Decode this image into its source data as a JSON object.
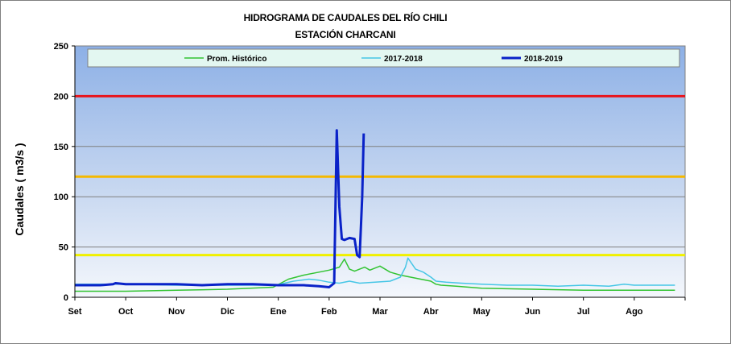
{
  "chart_data": {
    "type": "line",
    "title": "HIDROGRAMA DE CAUDALES DEL RÍO CHILI",
    "subtitle": "ESTACIÓN CHARCANI",
    "ylabel": "Caudales ( m3/s )",
    "xlabel": "",
    "ylim": [
      0,
      250
    ],
    "yticks": [
      0,
      50,
      100,
      150,
      200,
      250
    ],
    "categories": [
      "Set",
      "Oct",
      "Nov",
      "Dic",
      "Ene",
      "Feb",
      "Mar",
      "Abr",
      "May",
      "Jun",
      "Jul",
      "Ago"
    ],
    "legend_position": "top",
    "grid": true,
    "thresholds": [
      {
        "value": 200,
        "color": "#e8141c"
      },
      {
        "value": 120,
        "color": "#f5b800"
      },
      {
        "value": 42,
        "color": "#f0f000"
      }
    ],
    "series": [
      {
        "name": "Prom. Histórico",
        "color": "#33c433",
        "x": [
          0,
          1,
          2,
          3,
          3.9,
          4.2,
          4.5,
          4.8,
          5.0,
          5.2,
          5.3,
          5.4,
          5.5,
          5.6,
          5.7,
          5.8,
          6.0,
          6.2,
          6.4,
          6.6,
          6.8,
          7.0,
          7.1,
          7.2,
          7.5,
          8.0,
          9.0,
          10.0,
          11.0,
          11.8
        ],
        "values": [
          6,
          6,
          7,
          8,
          10,
          18,
          22,
          25,
          27,
          30,
          38,
          28,
          26,
          28,
          30,
          27,
          31,
          25,
          22,
          20,
          18,
          16,
          13,
          12,
          11,
          9,
          8,
          7,
          7,
          7
        ]
      },
      {
        "name": "2017-2018",
        "color": "#46c6e6",
        "x": [
          0,
          1,
          2,
          3,
          3.95,
          4.3,
          4.6,
          4.8,
          5.0,
          5.2,
          5.4,
          5.6,
          5.9,
          6.2,
          6.4,
          6.5,
          6.55,
          6.7,
          6.85,
          7.0,
          7.1,
          7.3,
          7.6,
          8.0,
          8.5,
          9.0,
          9.5,
          10.0,
          10.5,
          10.8,
          11.0,
          11.5,
          11.8
        ],
        "values": [
          13,
          13,
          12,
          12,
          12,
          16,
          18,
          17,
          15,
          14,
          16,
          14,
          15,
          16,
          20,
          30,
          39,
          28,
          25,
          20,
          16,
          15,
          14,
          13,
          12,
          12,
          11,
          12,
          11,
          13,
          12,
          12,
          12
        ]
      },
      {
        "name": "2018-2019",
        "color": "#0a22c8",
        "x": [
          0,
          0.5,
          0.75,
          0.8,
          1.0,
          1.5,
          2.0,
          2.5,
          3.0,
          3.5,
          4.0,
          4.5,
          4.8,
          5.0,
          5.1,
          5.15,
          5.2,
          5.25,
          5.3,
          5.4,
          5.5,
          5.55,
          5.6,
          5.65,
          5.68
        ],
        "values": [
          12,
          12,
          13,
          14,
          13,
          13,
          13,
          12,
          13,
          13,
          12,
          12,
          11,
          10,
          14,
          166,
          90,
          58,
          57,
          59,
          58,
          42,
          40,
          100,
          163
        ]
      }
    ]
  }
}
